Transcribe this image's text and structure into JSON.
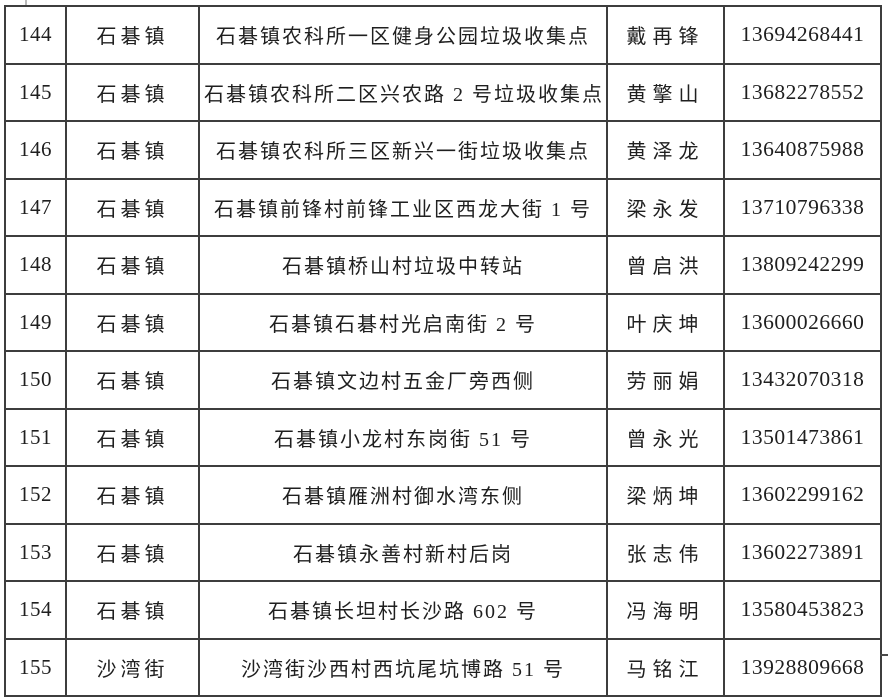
{
  "colors": {
    "background": "#ffffff",
    "border": "#3d3d3d",
    "text": "#1f1f1f"
  },
  "table": {
    "rows": [
      {
        "no": "144",
        "town": "石碁镇",
        "address": "石碁镇农科所一区健身公园垃圾收集点",
        "contact": "戴再锋",
        "phone": "13694268441"
      },
      {
        "no": "145",
        "town": "石碁镇",
        "address": "石碁镇农科所二区兴农路 2 号垃圾收集点",
        "contact": "黄擎山",
        "phone": "13682278552"
      },
      {
        "no": "146",
        "town": "石碁镇",
        "address": "石碁镇农科所三区新兴一街垃圾收集点",
        "contact": "黄泽龙",
        "phone": "13640875988"
      },
      {
        "no": "147",
        "town": "石碁镇",
        "address": "石碁镇前锋村前锋工业区西龙大街 1 号",
        "contact": "梁永发",
        "phone": "13710796338"
      },
      {
        "no": "148",
        "town": "石碁镇",
        "address": "石碁镇桥山村垃圾中转站",
        "contact": "曾启洪",
        "phone": "13809242299"
      },
      {
        "no": "149",
        "town": "石碁镇",
        "address": "石碁镇石碁村光启南街 2 号",
        "contact": "叶庆坤",
        "phone": "13600026660"
      },
      {
        "no": "150",
        "town": "石碁镇",
        "address": "石碁镇文边村五金厂旁西侧",
        "contact": "劳丽娟",
        "phone": "13432070318"
      },
      {
        "no": "151",
        "town": "石碁镇",
        "address": "石碁镇小龙村东岗街 51 号",
        "contact": "曾永光",
        "phone": "13501473861"
      },
      {
        "no": "152",
        "town": "石碁镇",
        "address": "石碁镇雁洲村御水湾东侧",
        "contact": "梁炳坤",
        "phone": "13602299162"
      },
      {
        "no": "153",
        "town": "石碁镇",
        "address": "石碁镇永善村新村后岗",
        "contact": "张志伟",
        "phone": "13602273891"
      },
      {
        "no": "154",
        "town": "石碁镇",
        "address": "石碁镇长坦村长沙路 602 号",
        "contact": "冯海明",
        "phone": "13580453823"
      },
      {
        "no": "155",
        "town": "沙湾街",
        "address": "沙湾街沙西村西坑尾坑博路 51 号",
        "contact": "马铭江",
        "phone": "13928809668"
      }
    ]
  }
}
